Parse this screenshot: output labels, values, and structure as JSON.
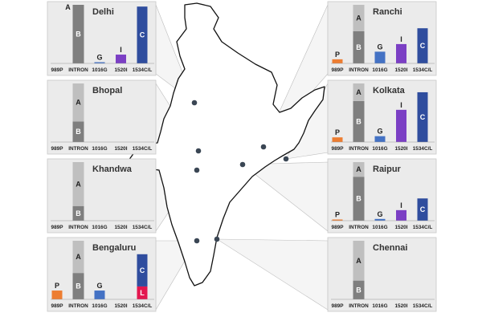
{
  "columns": [
    "989P",
    "INTRON",
    "1016G",
    "1520I",
    "1534C/L"
  ],
  "colors": {
    "P": "#ed7d31",
    "A": "#bfbfbf",
    "B": "#7f7f7f",
    "G": "#4472c4",
    "I": "#7b3fc4",
    "C": "#2f4d9e",
    "L": "#e3174f",
    "panel": "#ebebeb",
    "map_outline": "#111111",
    "dot": "#3a4654"
  },
  "chart_data": [
    {
      "type": "bar",
      "title": "Delhi",
      "categories": [
        "989P",
        "INTRON",
        "1016G",
        "1520I",
        "1534C/L"
      ],
      "intron": {
        "A": 0.0,
        "B": 1.0
      },
      "p": 0,
      "g": 0.02,
      "i": 0.15,
      "c": 0.97,
      "l": 0,
      "labels": {
        "A": "A",
        "B": "B",
        "G": "G",
        "I": "I",
        "C": "C"
      }
    },
    {
      "type": "bar",
      "title": "Bhopal",
      "categories": [
        "989P",
        "INTRON",
        "1016G",
        "1520I",
        "1534C/L"
      ],
      "intron": {
        "A": 0.65,
        "B": 0.35
      },
      "p": 0,
      "g": 0,
      "i": 0,
      "c": 0,
      "l": 0,
      "labels": {
        "A": "A",
        "B": "B"
      }
    },
    {
      "type": "bar",
      "title": "Khandwa",
      "categories": [
        "989P",
        "INTRON",
        "1016G",
        "1520I",
        "1534C/L"
      ],
      "intron": {
        "A": 0.75,
        "B": 0.25
      },
      "p": 0,
      "g": 0,
      "i": 0,
      "c": 0,
      "l": 0,
      "labels": {
        "A": "A",
        "B": "B"
      }
    },
    {
      "type": "bar",
      "title": "Bengaluru",
      "categories": [
        "989P",
        "INTRON",
        "1016G",
        "1520I",
        "1534C/L"
      ],
      "intron": {
        "A": 0.55,
        "B": 0.45
      },
      "p": 0.15,
      "g": 0.15,
      "i": 0,
      "c": 0.55,
      "l": 0.22,
      "labels": {
        "P": "P",
        "A": "A",
        "B": "B",
        "G": "G",
        "C": "C",
        "L": "L"
      }
    },
    {
      "type": "bar",
      "title": "Ranchi",
      "categories": [
        "989P",
        "INTRON",
        "1016G",
        "1520I",
        "1534C/L"
      ],
      "intron": {
        "A": 0.45,
        "B": 0.55
      },
      "p": 0.07,
      "g": 0.2,
      "i": 0.33,
      "c": 0.6,
      "l": 0,
      "labels": {
        "A": "A",
        "B": "B",
        "P": "P",
        "G": "G",
        "I": "I",
        "C": "C"
      }
    },
    {
      "type": "bar",
      "title": "Kolkata",
      "categories": [
        "989P",
        "INTRON",
        "1016G",
        "1520I",
        "1534C/L"
      ],
      "intron": {
        "A": 0.3,
        "B": 0.7
      },
      "p": 0.08,
      "g": 0.1,
      "i": 0.55,
      "c": 0.85,
      "l": 0,
      "labels": {
        "A": "A",
        "B": "B",
        "P": "P",
        "G": "G",
        "I": "I",
        "C": "C"
      }
    },
    {
      "type": "bar",
      "title": "Raipur",
      "categories": [
        "989P",
        "INTRON",
        "1016G",
        "1520I",
        "1534C/L"
      ],
      "intron": {
        "A": 0.25,
        "B": 0.75
      },
      "p": 0.02,
      "g": 0.03,
      "i": 0.18,
      "c": 0.38,
      "l": 0,
      "labels": {
        "A": "A",
        "B": "B",
        "P": "P",
        "G": "G",
        "I": "I",
        "C": "C"
      }
    },
    {
      "type": "bar",
      "title": "Chennai",
      "categories": [
        "989P",
        "INTRON",
        "1016G",
        "1520I",
        "1534C/L"
      ],
      "intron": {
        "A": 0.68,
        "B": 0.32
      },
      "p": 0,
      "g": 0,
      "i": 0,
      "c": 0,
      "l": 0,
      "labels": {
        "A": "A",
        "B": "B"
      }
    }
  ]
}
